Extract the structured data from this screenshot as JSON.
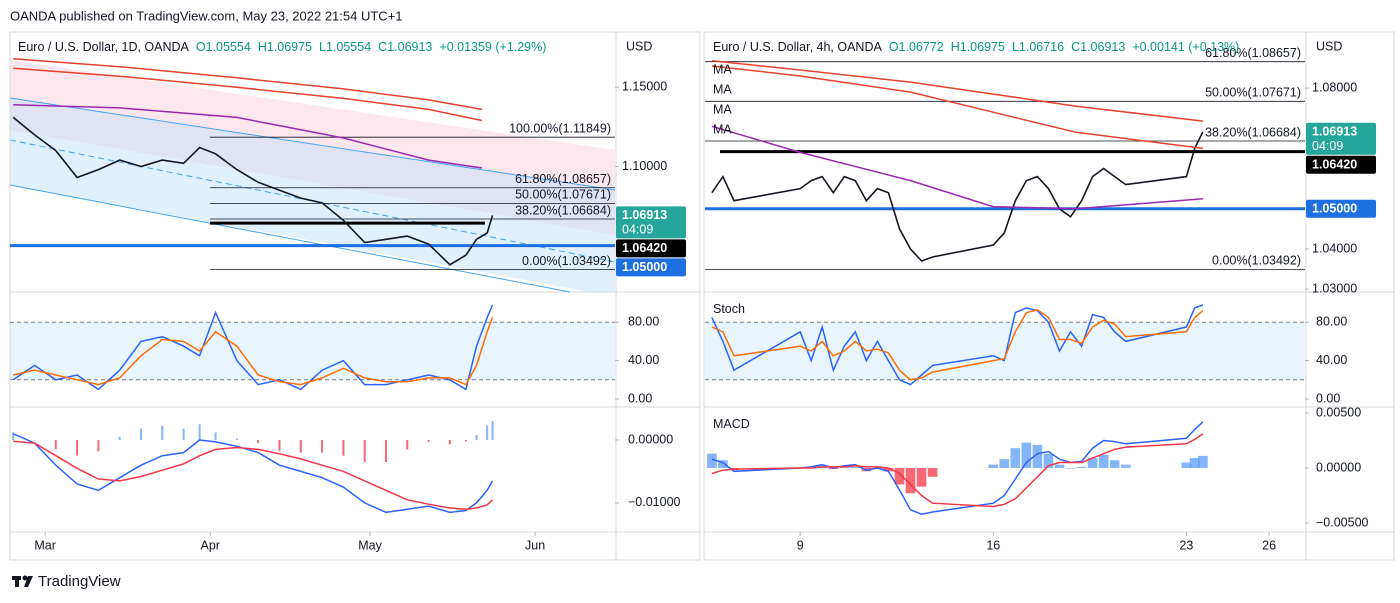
{
  "header": {
    "title": "OANDA published on TradingView.com, May 23, 2022 21:54 UTC+1"
  },
  "footer": {
    "brand": "TradingView"
  },
  "chart_data": [
    {
      "type": "line",
      "title": "Euro / U.S. Dollar, 1D, OANDA",
      "quote": [
        "O1.05554",
        "H1.06975",
        "L1.05554",
        "C1.06913",
        "+0.01359 (+1.29%)"
      ],
      "axis_label": "USD",
      "xlim": [
        53.4,
        167
      ],
      "ylim": [
        1.022,
        1.183
      ],
      "yticks": [
        {
          "value": 1.15,
          "label": "1.15000"
        },
        {
          "value": 1.1,
          "label": "1.10000"
        }
      ],
      "x": [
        54,
        58,
        62,
        66,
        70,
        74,
        78,
        82,
        86,
        89,
        92,
        96,
        100,
        104,
        108,
        112,
        116,
        120,
        124,
        128,
        132,
        136,
        139,
        141,
        143,
        144
      ],
      "series": [
        {
          "color": "#131722",
          "values": [
            1.131,
            1.12,
            1.11,
            1.093,
            1.098,
            1.104,
            1.1,
            1.104,
            1.102,
            1.112,
            1.108,
            1.098,
            1.09,
            1.085,
            1.08,
            1.077,
            1.066,
            1.052,
            1.054,
            1.056,
            1.051,
            1.038,
            1.044,
            1.054,
            1.058,
            1.06913
          ]
        },
        {
          "color": "#e8412c",
          "x": [
            54,
            74,
            96,
            116,
            132,
            142
          ],
          "values": [
            1.168,
            1.163,
            1.156,
            1.149,
            1.142,
            1.136
          ]
        },
        {
          "color": "#e8412c",
          "x": [
            54,
            74,
            96,
            116,
            132,
            142
          ],
          "values": [
            1.162,
            1.157,
            1.15,
            1.143,
            1.136,
            1.129
          ]
        },
        {
          "color": "#9c27b0",
          "x": [
            54,
            74,
            96,
            116,
            132,
            142
          ],
          "values": [
            1.139,
            1.137,
            1.131,
            1.118,
            1.104,
            1.099
          ]
        }
      ],
      "levels": [
        {
          "value": 1.11849,
          "label": "100.00%(1.11849)"
        },
        {
          "value": 1.08657,
          "label": "61.80%(1.08657)"
        },
        {
          "value": 1.07671,
          "label": "50.00%(1.07671)"
        },
        {
          "value": 1.06684,
          "label": "38.20%(1.06684)"
        },
        {
          "value": 1.03492,
          "label": "0.00%(1.03492)"
        }
      ],
      "hlines": [
        {
          "value": 1.0642,
          "color": "#000000"
        },
        {
          "value": 1.05,
          "color": "#1e6fe0"
        }
      ],
      "price_tags": [
        {
          "value": 1.06913,
          "label": "1.06913",
          "color": "#26a69a"
        },
        {
          "value": 1.0642,
          "label": "1.06420",
          "color": "#000000"
        },
        {
          "value": 1.05,
          "label": "1.05000",
          "color": "#1e6fe0"
        }
      ],
      "countdown": "04:09"
    },
    {
      "type": "line",
      "ylim": [
        -6.3,
        108.4
      ],
      "band": [
        20,
        80
      ],
      "yticks": [
        {
          "value": 80,
          "label": "80.00"
        },
        {
          "value": 40,
          "label": "40.00"
        },
        {
          "value": 0,
          "label": "0.00"
        }
      ],
      "xlim": [
        53.4,
        167
      ],
      "x": [
        54,
        58,
        62,
        66,
        70,
        74,
        78,
        82,
        86,
        89,
        92,
        96,
        100,
        104,
        108,
        112,
        116,
        120,
        124,
        128,
        132,
        136,
        139,
        141,
        143,
        144
      ],
      "series": [
        {
          "color": "#2962ff",
          "values": [
            20,
            35,
            20,
            25,
            10,
            30,
            60,
            65,
            55,
            45,
            90,
            40,
            15,
            20,
            10,
            30,
            40,
            15,
            15,
            20,
            25,
            20,
            10,
            55,
            85,
            98
          ]
        },
        {
          "color": "#ff6d00",
          "values": [
            25,
            30,
            25,
            20,
            15,
            22,
            45,
            62,
            60,
            50,
            70,
            55,
            25,
            18,
            15,
            22,
            32,
            22,
            18,
            18,
            22,
            22,
            15,
            35,
            70,
            85
          ]
        }
      ]
    },
    {
      "type": "line",
      "ylim": [
        -0.0143,
        0.00476
      ],
      "yticks": [
        {
          "value": 0,
          "label": "0.00000"
        },
        {
          "value": -0.01,
          "label": "−0.01000"
        }
      ],
      "xlim": [
        53.4,
        167
      ],
      "xticks": [
        {
          "value": 60,
          "label": "Mar"
        },
        {
          "value": 91,
          "label": "Apr"
        },
        {
          "value": 121,
          "label": "May"
        },
        {
          "value": 152,
          "label": "Jun"
        }
      ],
      "x": [
        54,
        58,
        62,
        66,
        70,
        74,
        78,
        82,
        86,
        89,
        92,
        96,
        100,
        104,
        108,
        112,
        116,
        120,
        124,
        128,
        132,
        136,
        139,
        141,
        143,
        144
      ],
      "series": [
        {
          "type": "bar",
          "color": "#5b9cf6",
          "negative_color": "#f23645",
          "values": [
            0.0012,
            0,
            -0.0015,
            -0.0025,
            -0.0018,
            0.0005,
            0.0018,
            0.0023,
            0.0018,
            0.0025,
            0.0012,
            0.0002,
            -0.0005,
            -0.0018,
            -0.002,
            -0.002,
            -0.0025,
            -0.0035,
            -0.0035,
            -0.0015,
            -0.0003,
            -0.0007,
            -0.0002,
            0.0008,
            0.0023,
            0.003
          ]
        },
        {
          "color": "#2962ff",
          "values": [
            0.001,
            -0.0005,
            -0.004,
            -0.007,
            -0.008,
            -0.006,
            -0.004,
            -0.0025,
            -0.002,
            0,
            -0.0003,
            -0.001,
            -0.002,
            -0.004,
            -0.005,
            -0.006,
            -0.0075,
            -0.01,
            -0.0115,
            -0.011,
            -0.0105,
            -0.0115,
            -0.0112,
            -0.01,
            -0.008,
            -0.0065
          ]
        },
        {
          "color": "#f23645",
          "values": [
            -0.0002,
            -0.0005,
            -0.0025,
            -0.0045,
            -0.0062,
            -0.0065,
            -0.0058,
            -0.0048,
            -0.0038,
            -0.0025,
            -0.0015,
            -0.0012,
            -0.0015,
            -0.0022,
            -0.003,
            -0.004,
            -0.005,
            -0.0065,
            -0.008,
            -0.0095,
            -0.0102,
            -0.0108,
            -0.011,
            -0.0108,
            -0.0103,
            -0.0095
          ]
        }
      ]
    },
    {
      "type": "line",
      "title": "Euro / U.S. Dollar, 4h, OANDA",
      "quote": [
        "O1.06772",
        "H1.06975",
        "L1.06716",
        "C1.06913",
        "+0.00141 (+0.13%)"
      ],
      "axis_label": "USD",
      "labels": [
        "MA",
        "MA",
        "MA",
        "MA"
      ],
      "xlim": [
        5.55,
        27.3
      ],
      "ylim": [
        1.0298,
        1.0932
      ],
      "yticks": [
        {
          "value": 1.08,
          "label": "1.08000"
        },
        {
          "value": 1.04,
          "label": "1.04000"
        },
        {
          "value": 1.03,
          "label": "1.03000"
        }
      ],
      "x": [
        5.8,
        6.2,
        6.6,
        9.0,
        9.4,
        9.8,
        10.2,
        10.6,
        11.0,
        11.4,
        11.8,
        12.2,
        12.6,
        13.0,
        13.4,
        13.8,
        16.0,
        16.4,
        16.8,
        17.2,
        17.6,
        18.0,
        18.4,
        18.8,
        19.2,
        19.6,
        20.0,
        20.4,
        20.8,
        23.0,
        23.3,
        23.6
      ],
      "series": [
        {
          "color": "#131722",
          "values": [
            1.054,
            1.058,
            1.052,
            1.055,
            1.057,
            1.058,
            1.054,
            1.058,
            1.057,
            1.052,
            1.055,
            1.054,
            1.045,
            1.04,
            1.037,
            1.038,
            1.041,
            1.044,
            1.052,
            1.057,
            1.058,
            1.055,
            1.05,
            1.048,
            1.052,
            1.058,
            1.06,
            1.058,
            1.056,
            1.058,
            1.065,
            1.06913
          ]
        },
        {
          "color": "#e8412c",
          "x": [
            5.8,
            9.0,
            13.0,
            16.0,
            19.0,
            23.6
          ],
          "values": [
            1.0868,
            1.0845,
            1.0815,
            1.0785,
            1.0755,
            1.0718
          ]
        },
        {
          "color": "#e8412c",
          "x": [
            5.8,
            9.0,
            13.0,
            16.0,
            19.0,
            23.6
          ],
          "values": [
            1.0855,
            1.083,
            1.079,
            1.074,
            1.069,
            1.065
          ]
        },
        {
          "color": "#9c27b0",
          "x": [
            5.8,
            9.0,
            13.0,
            16.0,
            19.0,
            23.6
          ],
          "values": [
            1.0705,
            1.064,
            1.057,
            1.0505,
            1.05,
            1.0525
          ]
        }
      ],
      "levels": [
        {
          "value": 1.08657,
          "label": "61.80%(1.08657)"
        },
        {
          "value": 1.07671,
          "label": "50.00%(1.07671)"
        },
        {
          "value": 1.06684,
          "label": "38.20%(1.06684)"
        },
        {
          "value": 1.03492,
          "label": "0.00%(1.03492)"
        }
      ],
      "hlines": [
        {
          "value": 1.0642,
          "color": "#000000"
        },
        {
          "value": 1.05,
          "color": "#1e6fe0"
        }
      ],
      "price_tags": [
        {
          "value": 1.06913,
          "label": "1.06913",
          "color": "#26a69a"
        },
        {
          "value": 1.0642,
          "label": "1.06420",
          "color": "#000000"
        },
        {
          "value": 1.05,
          "label": "1.05000",
          "color": "#1e6fe0"
        }
      ],
      "countdown": "04:09"
    },
    {
      "type": "line",
      "title": "Stoch",
      "ylim": [
        -6.3,
        108.4
      ],
      "band": [
        20,
        80
      ],
      "yticks": [
        {
          "value": 80,
          "label": "80.00"
        },
        {
          "value": 40,
          "label": "40.00"
        },
        {
          "value": 0,
          "label": "0.00"
        }
      ],
      "xlim": [
        5.55,
        27.3
      ],
      "x": [
        5.8,
        6.2,
        6.6,
        9.0,
        9.4,
        9.8,
        10.2,
        10.6,
        11.0,
        11.4,
        11.8,
        12.2,
        12.6,
        13.0,
        13.4,
        13.8,
        16.0,
        16.4,
        16.8,
        17.2,
        17.6,
        18.0,
        18.4,
        18.8,
        19.2,
        19.6,
        20.0,
        20.4,
        20.8,
        23.0,
        23.3,
        23.6
      ],
      "series": [
        {
          "color": "#2962ff",
          "values": [
            85,
            60,
            30,
            70,
            40,
            75,
            30,
            55,
            70,
            40,
            60,
            40,
            20,
            15,
            25,
            35,
            45,
            40,
            90,
            95,
            92,
            80,
            50,
            70,
            55,
            88,
            85,
            70,
            60,
            75,
            95,
            98
          ]
        },
        {
          "color": "#ff6d00",
          "values": [
            75,
            70,
            45,
            55,
            50,
            60,
            45,
            50,
            60,
            50,
            52,
            48,
            30,
            20,
            22,
            28,
            40,
            42,
            70,
            90,
            93,
            85,
            62,
            62,
            58,
            75,
            82,
            78,
            65,
            70,
            85,
            92
          ]
        }
      ]
    },
    {
      "type": "line",
      "title": "MACD",
      "ylim": [
        -0.00564,
        0.00527
      ],
      "yticks": [
        {
          "value": 0.005,
          "label": "0.00500"
        },
        {
          "value": 0,
          "label": "0.00000"
        },
        {
          "value": -0.005,
          "label": "−0.00500"
        }
      ],
      "xlim": [
        5.55,
        27.3
      ],
      "xticks": [
        9,
        16,
        23,
        26
      ],
      "x": [
        5.8,
        6.2,
        6.6,
        9.0,
        9.4,
        9.8,
        10.2,
        10.6,
        11.0,
        11.4,
        11.8,
        12.2,
        12.6,
        13.0,
        13.4,
        13.8,
        16.0,
        16.4,
        16.8,
        17.2,
        17.6,
        18.0,
        18.4,
        18.8,
        19.2,
        19.6,
        20.0,
        20.4,
        20.8,
        23.0,
        23.3,
        23.6
      ],
      "series": [
        {
          "type": "bar",
          "color": "#5b9cf6",
          "negative_color": "#f23645",
          "values": [
            0.0013,
            0.0007,
            -0.0002,
            0,
            0.0001,
            0.0002,
            -0.0001,
            0.0001,
            0.0001,
            -0.0003,
            -0.0001,
            -0.0003,
            -0.0015,
            -0.0023,
            -0.0017,
            -0.0008,
            0.0003,
            0.0008,
            0.0018,
            0.0023,
            0.0021,
            0.0013,
            0.0003,
            0,
            0.0001,
            0.0009,
            0.0012,
            0.0007,
            0.0003,
            0.0005,
            0.0009,
            0.0011
          ]
        },
        {
          "color": "#2962ff",
          "values": [
            0.0008,
            0.0005,
            -0.0003,
            0,
            0.0001,
            0.0003,
            0,
            0.0002,
            0.0003,
            -0.0002,
            0,
            -0.0003,
            -0.002,
            -0.0038,
            -0.0042,
            -0.004,
            -0.0032,
            -0.0025,
            -0.001,
            0.0005,
            0.0013,
            0.0015,
            0.0008,
            0.0005,
            0.0006,
            0.0018,
            0.0025,
            0.0024,
            0.0022,
            0.0027,
            0.0035,
            0.0042
          ]
        },
        {
          "color": "#f23645",
          "values": [
            -0.0005,
            -0.0002,
            -0.0001,
            0,
            0,
            0.0001,
            0.0001,
            0.0001,
            0.0002,
            0.0001,
            0.0001,
            0,
            -0.0005,
            -0.0015,
            -0.0025,
            -0.0032,
            -0.0035,
            -0.0033,
            -0.0028,
            -0.0018,
            -0.0008,
            0.0002,
            0.0005,
            0.0005,
            0.0005,
            0.0009,
            0.0013,
            0.0017,
            0.0019,
            0.0022,
            0.0026,
            0.0031
          ]
        }
      ]
    }
  ]
}
